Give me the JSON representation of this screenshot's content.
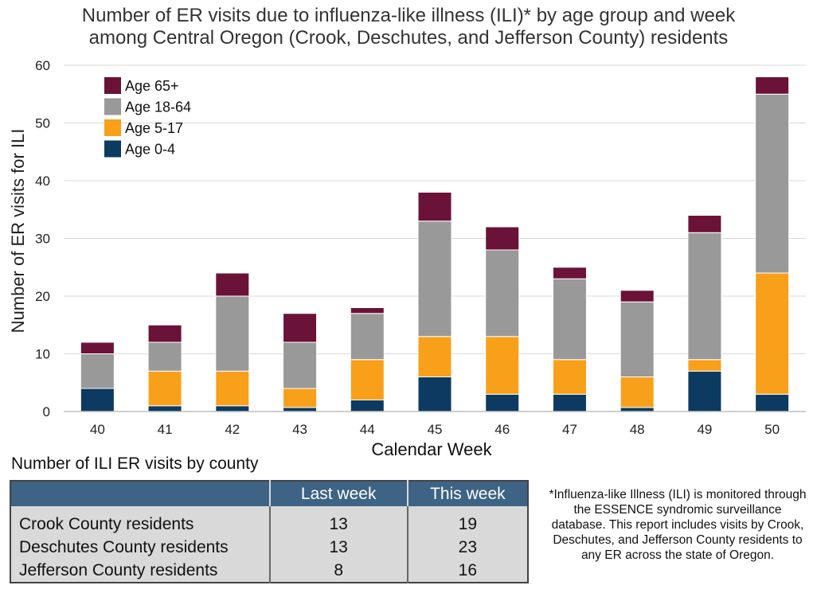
{
  "chart_data": {
    "type": "bar",
    "stacked": true,
    "title_lines": [
      "Number of ER visits due to influenza-like illness (ILI)* by age group and week",
      "among Central Oregon (Crook, Deschutes, and Jefferson County) residents"
    ],
    "xlabel": "Calendar Week",
    "ylabel": "Number of ER visits for ILI",
    "ylim": [
      0,
      60
    ],
    "yticks": [
      0,
      10,
      20,
      30,
      40,
      50,
      60
    ],
    "grid": true,
    "legend_position": "top-left",
    "categories": [
      "40",
      "41",
      "42",
      "43",
      "44",
      "45",
      "46",
      "47",
      "48",
      "49",
      "50"
    ],
    "series": [
      {
        "name": "Age 0-4",
        "color": "#0d3a61",
        "values": [
          4,
          1,
          1,
          0.7,
          2,
          6,
          3,
          3,
          0.7,
          7,
          3
        ]
      },
      {
        "name": "Age 5-17",
        "color": "#f9a01b",
        "values": [
          0,
          6,
          6,
          3.3,
          7,
          7,
          10,
          6,
          5.3,
          2,
          21
        ]
      },
      {
        "name": "Age 18-64",
        "color": "#999999",
        "values": [
          6,
          5,
          13,
          8,
          8,
          20,
          15,
          14,
          13,
          22,
          31
        ]
      },
      {
        "name": "Age 65+",
        "color": "#6b1238",
        "values": [
          2,
          3,
          4,
          5,
          1,
          5,
          4,
          2,
          2,
          3,
          3
        ]
      }
    ]
  },
  "table": {
    "caption": "Number of ILI ER visits by county",
    "headers": [
      "",
      "Last week",
      "This week"
    ],
    "rows": [
      {
        "county": "Crook County residents",
        "last": "13",
        "this": "19"
      },
      {
        "county": "Deschutes County residents",
        "last": "13",
        "this": "23"
      },
      {
        "county": "Jefferson County residents",
        "last": "8",
        "this": "16"
      }
    ]
  },
  "footnote": "*Influenza-like Illness (ILI) is monitored through the ESSENCE syndromic surveillance database. This report includes visits by Crook, Deschutes, and Jefferson County residents to any ER across the state of Oregon."
}
